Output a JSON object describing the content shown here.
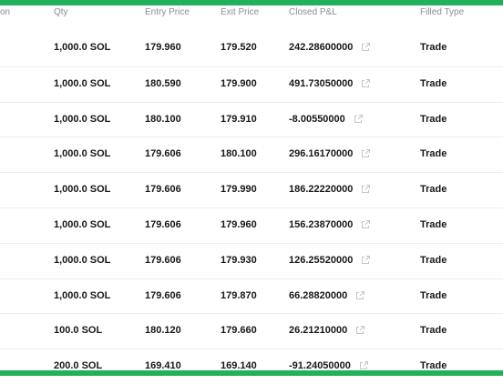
{
  "headers": {
    "partial": "on",
    "qty": "Qty",
    "entry_price": "Entry Price",
    "exit_price": "Exit Price",
    "closed_pnl": "Closed P&L",
    "filled_type": "Filled Type"
  },
  "rows": [
    {
      "qty": "1,000.0 SOL",
      "entry": "179.960",
      "exit": "179.520",
      "pnl": "242.28600000",
      "type": "Trade"
    },
    {
      "qty": "1,000.0 SOL",
      "entry": "180.590",
      "exit": "179.900",
      "pnl": "491.73050000",
      "type": "Trade"
    },
    {
      "qty": "1,000.0 SOL",
      "entry": "180.100",
      "exit": "179.910",
      "pnl": "-8.00550000",
      "type": "Trade"
    },
    {
      "qty": "1,000.0 SOL",
      "entry": "179.606",
      "exit": "180.100",
      "pnl": "296.16170000",
      "type": "Trade"
    },
    {
      "qty": "1,000.0 SOL",
      "entry": "179.606",
      "exit": "179.990",
      "pnl": "186.22220000",
      "type": "Trade"
    },
    {
      "qty": "1,000.0 SOL",
      "entry": "179.606",
      "exit": "179.960",
      "pnl": "156.23870000",
      "type": "Trade"
    },
    {
      "qty": "1,000.0 SOL",
      "entry": "179.606",
      "exit": "179.930",
      "pnl": "126.25520000",
      "type": "Trade"
    },
    {
      "qty": "1,000.0 SOL",
      "entry": "179.606",
      "exit": "179.870",
      "pnl": "66.28820000",
      "type": "Trade"
    },
    {
      "qty": "100.0 SOL",
      "entry": "180.120",
      "exit": "179.660",
      "pnl": "26.21210000",
      "type": "Trade"
    },
    {
      "qty": "200.0 SOL",
      "entry": "169.410",
      "exit": "169.140",
      "pnl": "-91.24050000",
      "type": "Trade"
    }
  ],
  "icons": {
    "pnl_link": "external-link-icon"
  },
  "colors": {
    "accent_bar": "#20b15a",
    "header_text": "#8b8d96",
    "cell_text": "#17181c",
    "divider": "#eceef2",
    "icon": "#c3c6cf"
  }
}
